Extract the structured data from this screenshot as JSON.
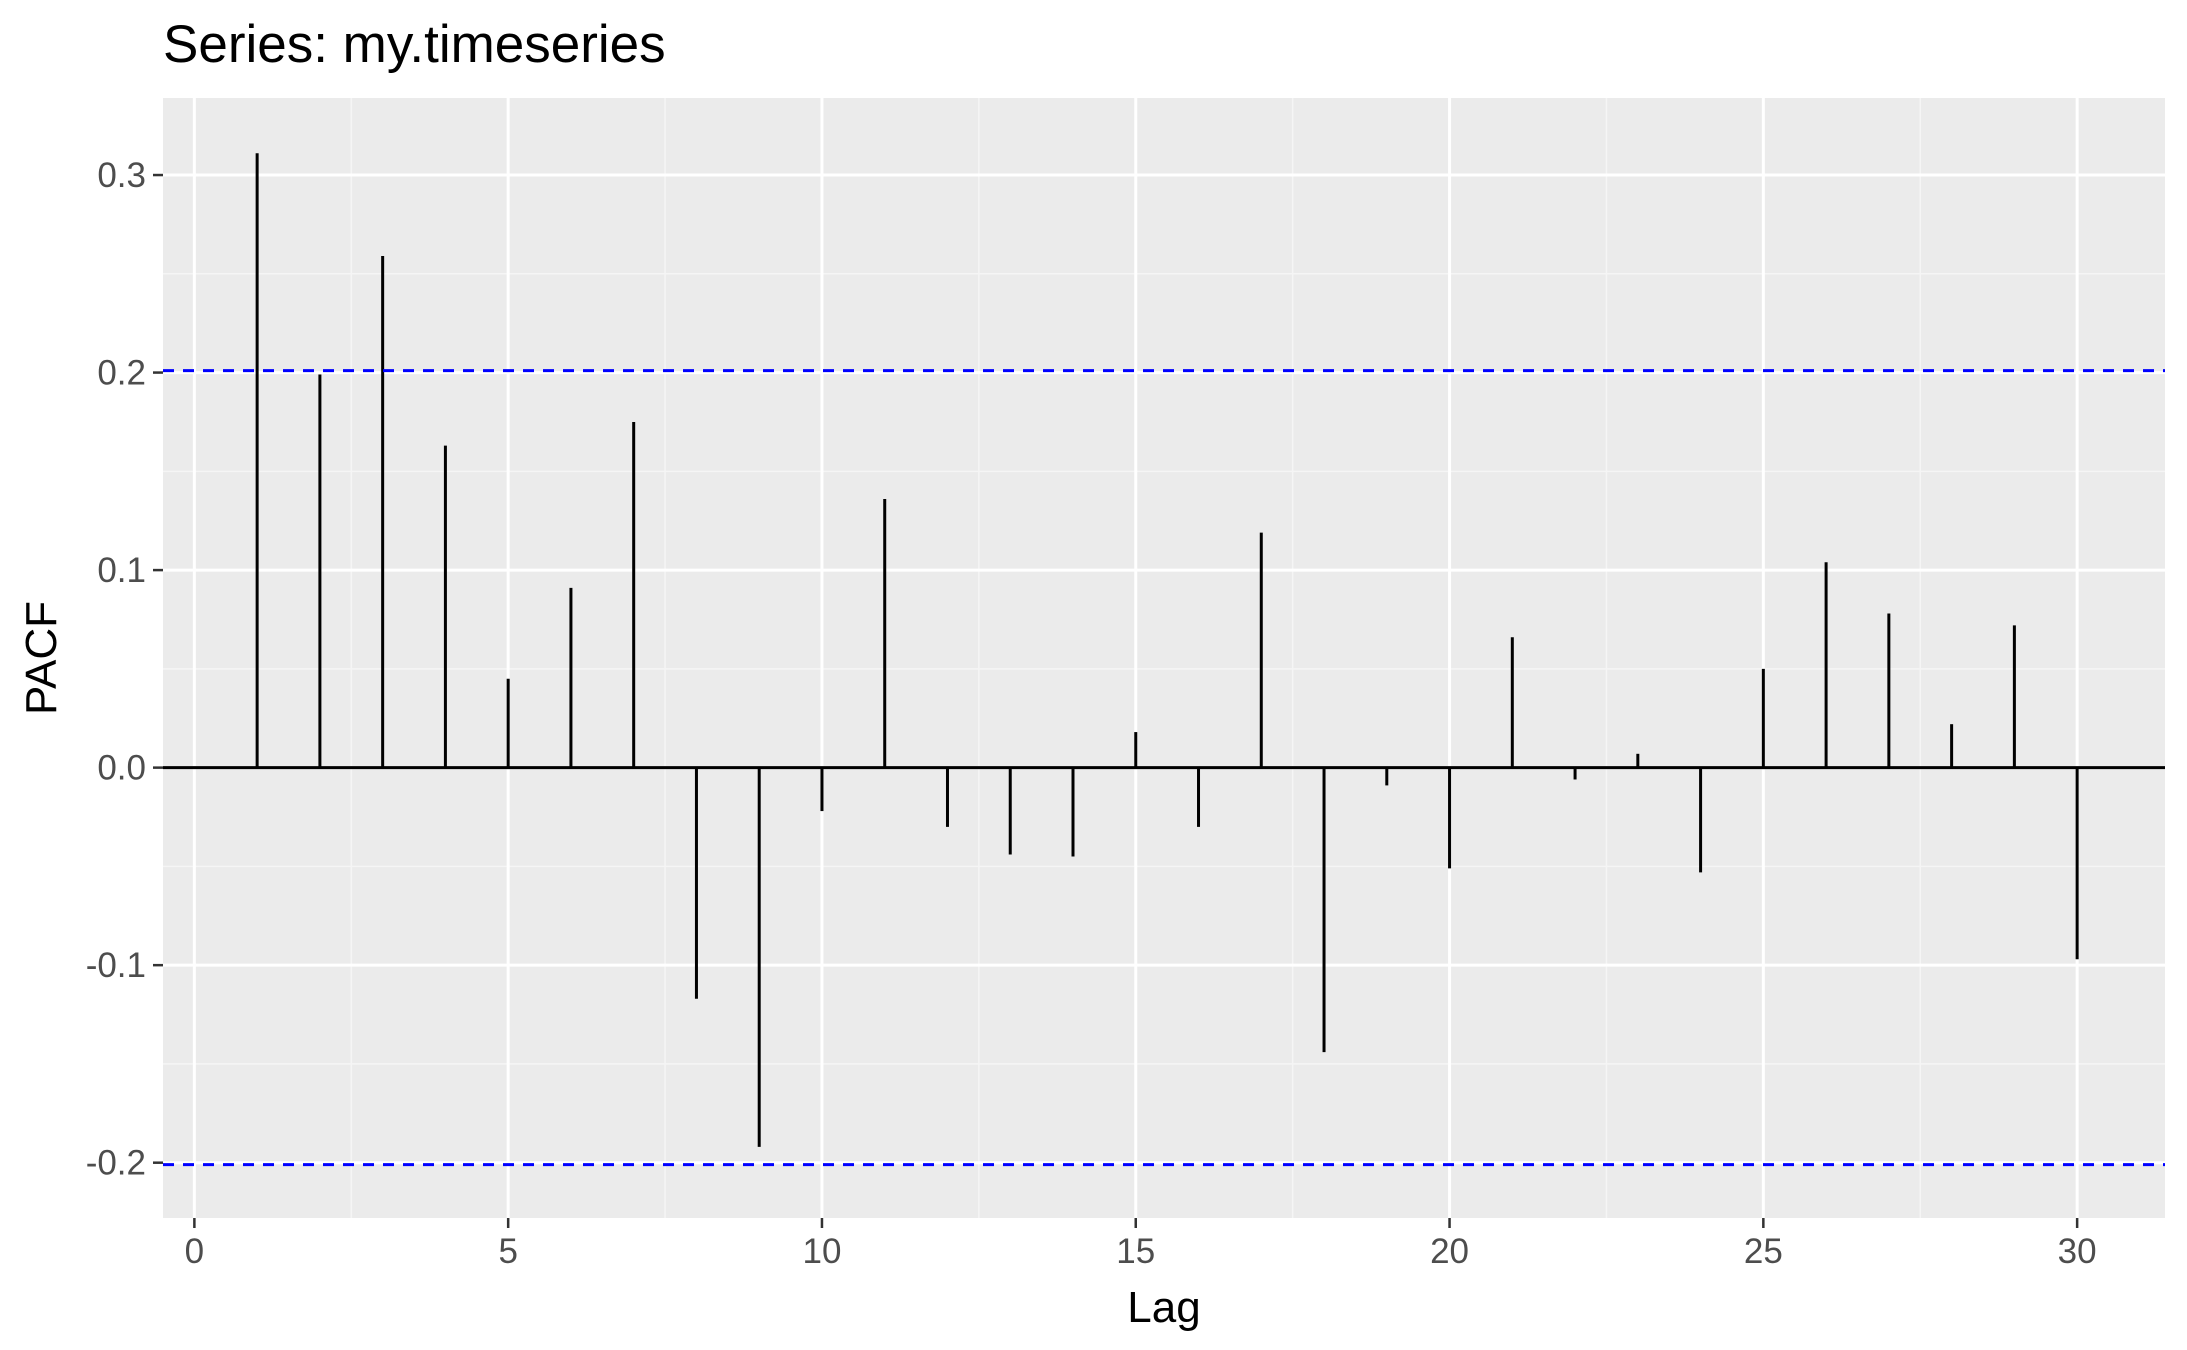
{
  "chart_data": {
    "type": "bar",
    "title": "Series: my.timeseries",
    "xlabel": "Lag",
    "ylabel": "PACF",
    "x": [
      1,
      2,
      3,
      4,
      5,
      6,
      7,
      8,
      9,
      10,
      11,
      12,
      13,
      14,
      15,
      16,
      17,
      18,
      19,
      20,
      21,
      22,
      23,
      24,
      25,
      26,
      27,
      28,
      29,
      30
    ],
    "values": [
      0.311,
      0.199,
      0.259,
      0.163,
      0.045,
      0.091,
      0.175,
      -0.117,
      -0.192,
      -0.022,
      0.136,
      -0.03,
      -0.044,
      -0.045,
      0.018,
      -0.03,
      0.119,
      -0.144,
      -0.009,
      -0.051,
      0.066,
      -0.006,
      0.007,
      -0.053,
      0.05,
      0.104,
      0.078,
      0.022,
      0.072,
      -0.097
    ],
    "confidence_bounds": [
      0.201,
      -0.201
    ],
    "xlim": [
      -0.5,
      31.4
    ],
    "ylim": [
      -0.228,
      0.339
    ],
    "x_ticks": [
      0,
      5,
      10,
      15,
      20,
      25,
      30
    ],
    "x_tick_labels": [
      "0",
      "5",
      "10",
      "15",
      "20",
      "25",
      "30"
    ],
    "y_ticks": [
      -0.2,
      -0.1,
      0.0,
      0.1,
      0.2,
      0.3
    ],
    "y_tick_labels": [
      "-0.2",
      "-0.1",
      "0.0",
      "0.1",
      "0.2",
      "0.3"
    ],
    "grid": true,
    "colors": {
      "panel_background": "#ebebeb",
      "grid_major": "#ffffff",
      "grid_minor": "#f5f5f5",
      "bars": "#000000",
      "zero_line": "#000000",
      "confidence_lines": "#0000ff",
      "tick_marks": "#333333"
    }
  }
}
